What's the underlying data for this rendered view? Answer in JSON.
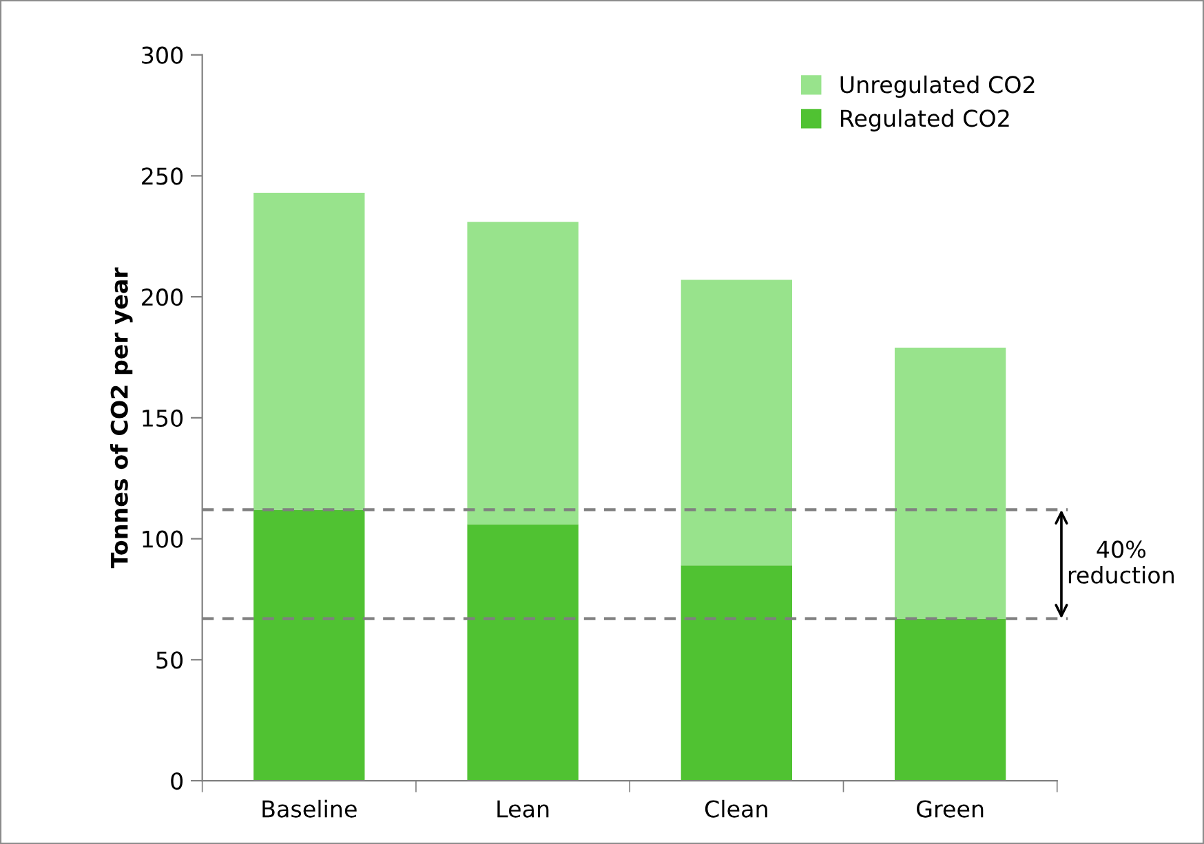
{
  "chart_data": {
    "type": "bar",
    "stacked": true,
    "ylabel": "Tonnes of CO2 per year",
    "categories": [
      "Baseline",
      "Lean",
      "Clean",
      "Green"
    ],
    "series": [
      {
        "name": "Regulated CO2",
        "color": "#50c232",
        "values": [
          112,
          106,
          89,
          67
        ]
      },
      {
        "name": "Unregulated CO2",
        "color": "#98e38c",
        "values": [
          131,
          125,
          118,
          112
        ]
      }
    ],
    "ylim": [
      0,
      300
    ],
    "yticks": [
      0,
      50,
      100,
      150,
      200,
      250,
      300
    ],
    "grid": false,
    "legend": "top right",
    "ref_lines": [
      {
        "axis": "y",
        "value": 112,
        "color": "#808080",
        "line_style": "dashed"
      },
      {
        "axis": "y",
        "value": 67,
        "color": "#808080",
        "line_style": "dashed"
      }
    ],
    "annotations": [
      "40%\nreduction"
    ]
  }
}
